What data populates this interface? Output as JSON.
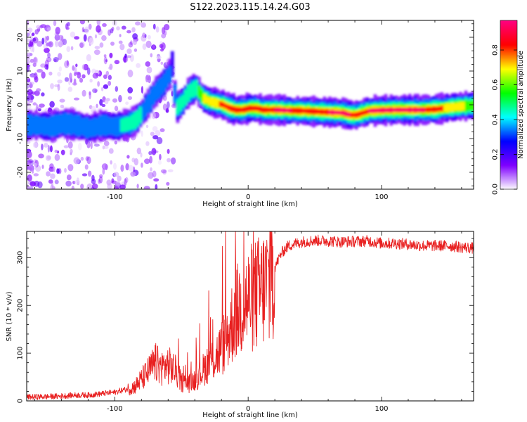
{
  "title": "S122.2023.115.14.24.G03",
  "chart_data": [
    {
      "type": "heatmap",
      "xlabel": "Height of straight line (km)",
      "ylabel": "Frequency (Hz)",
      "xlim": [
        -166,
        169
      ],
      "ylim": [
        -25,
        25
      ],
      "xticks": [
        -100,
        0,
        100
      ],
      "yticks": [
        -20,
        -10,
        0,
        10,
        20
      ],
      "colorbar": {
        "label": "Normalized spectral amplitude",
        "range": [
          0,
          0.97
        ],
        "ticks": [
          0.0,
          0.2,
          0.4,
          0.6,
          0.8
        ],
        "colormap": "rainbow",
        "colors": [
          "#ffffff",
          "#7f00ff",
          "#0000ff",
          "#00ffff",
          "#00ff00",
          "#ffff00",
          "#ff0000",
          "#ff0080"
        ]
      },
      "ridge": {
        "x": [
          -160,
          -150,
          -140,
          -130,
          -120,
          -115,
          -110,
          -100,
          -90,
          -85,
          -80,
          -75,
          -70,
          -65,
          -60,
          -58,
          -55,
          -50,
          -45,
          -40,
          -35,
          -30,
          -25,
          -20,
          -15,
          -10,
          -5,
          0,
          5,
          10,
          20,
          30,
          40,
          50,
          60,
          70,
          75,
          80,
          85,
          90,
          100,
          110,
          120,
          130,
          140,
          150,
          160,
          169
        ],
        "freq": [
          -6,
          -6.5,
          -5.5,
          -6,
          -7,
          -6.5,
          -6,
          -6.5,
          -5.5,
          -4.5,
          -2,
          1,
          4,
          6,
          9,
          12,
          -1,
          1,
          4,
          5,
          2,
          1,
          0.5,
          0,
          -1,
          -1.5,
          -1.5,
          -1,
          -1,
          -1.5,
          -1.5,
          -1.7,
          -1.8,
          -2,
          -2.2,
          -2.4,
          -3,
          -3,
          -2.4,
          -1.8,
          -1.6,
          -1.5,
          -1.5,
          -1.5,
          -1.3,
          -0.8,
          -0.4,
          -0.2
        ],
        "peak_amplitude": [
          0.35,
          0.4,
          0.4,
          0.35,
          0.4,
          0.4,
          0.42,
          0.45,
          0.48,
          0.5,
          0.45,
          0.4,
          0.45,
          0.4,
          0.35,
          0.3,
          0.45,
          0.5,
          0.55,
          0.5,
          0.7,
          0.75,
          0.8,
          0.85,
          0.9,
          0.85,
          0.9,
          0.9,
          0.9,
          0.9,
          0.95,
          0.95,
          0.9,
          0.9,
          0.95,
          0.95,
          0.95,
          0.9,
          0.9,
          0.95,
          0.95,
          0.95,
          0.95,
          0.95,
          0.9,
          0.75,
          0.7,
          0.65
        ]
      }
    },
    {
      "type": "line",
      "xlabel": "Height of straight line (km)",
      "ylabel": "SNR (10 * v/v)",
      "xlim": [
        -166,
        169
      ],
      "ylim": [
        0,
        355
      ],
      "xticks": [
        -100,
        0,
        100
      ],
      "yticks": [
        0,
        100,
        200,
        300
      ],
      "series": [
        {
          "color": "#e82020",
          "x": [
            -166,
            -150,
            -140,
            -130,
            -120,
            -110,
            -100,
            -95,
            -90,
            -85,
            -80,
            -75,
            -70,
            -65,
            -60,
            -55,
            -50,
            -45,
            -40,
            -35,
            -30,
            -25,
            -20,
            -15,
            -10,
            -5,
            0,
            5,
            10,
            15,
            20,
            25,
            30,
            40,
            50,
            60,
            70,
            80,
            90,
            100,
            110,
            120,
            130,
            140,
            150,
            160,
            169
          ],
          "y": [
            8,
            9,
            10,
            12,
            12,
            15,
            18,
            22,
            25,
            30,
            45,
            60,
            80,
            70,
            75,
            65,
            40,
            35,
            45,
            60,
            80,
            90,
            110,
            140,
            180,
            200,
            210,
            220,
            230,
            250,
            280,
            310,
            325,
            333,
            336,
            335,
            333,
            334,
            335,
            330,
            330,
            328,
            325,
            325,
            325,
            322,
            320
          ]
        }
      ]
    }
  ]
}
